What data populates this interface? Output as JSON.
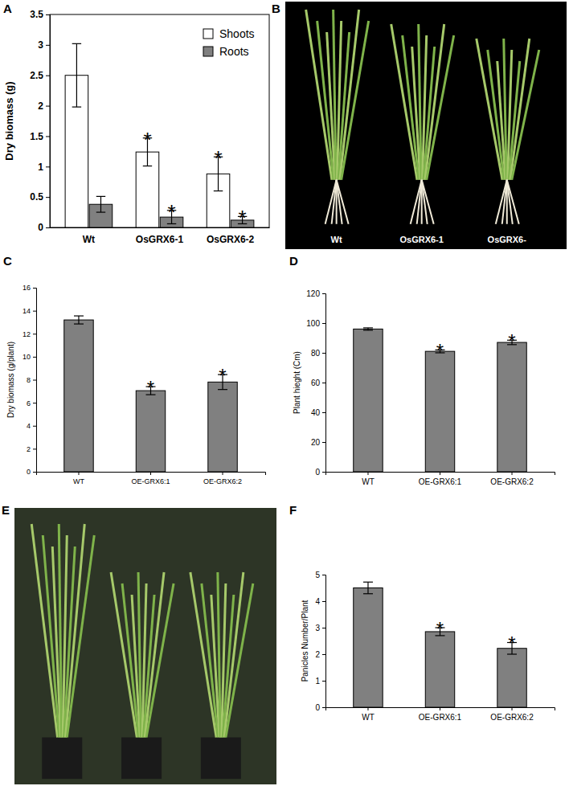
{
  "chart_data": [
    {
      "type": "bar",
      "panel_label": "A",
      "y_label": "Dry biomass (g)",
      "categories": [
        "Wt",
        "OsGRX6-1",
        "OsGRX6-2"
      ],
      "series": [
        {
          "name": "Shoots",
          "color": "#ffffff",
          "values": [
            2.5,
            1.24,
            0.88
          ],
          "errors": [
            0.52,
            0.23,
            0.28
          ],
          "annotations": [
            null,
            "*",
            "*"
          ]
        },
        {
          "name": "Roots",
          "color": "#808080",
          "values": [
            0.38,
            0.17,
            0.12
          ],
          "errors": [
            0.13,
            0.11,
            0.06
          ],
          "annotations": [
            null,
            "*",
            "*"
          ]
        }
      ],
      "ylim": [
        0,
        3.5
      ],
      "yticks": [
        0,
        0.5,
        1,
        1.5,
        2,
        2.5,
        3,
        3.5
      ],
      "grid": false,
      "legend": "upper right"
    },
    {
      "type": "image",
      "panel_label": "B",
      "labels": [
        "Wt",
        "OsGRX6-1",
        "OsGRX6-"
      ]
    },
    {
      "type": "bar",
      "panel_label": "C",
      "y_label": "Dry biomass (g/plant)",
      "categories": [
        "WT",
        "OE-GRX6:1",
        "OE-GRX6:2"
      ],
      "values": [
        13.2,
        7.05,
        7.8
      ],
      "errors": [
        0.35,
        0.35,
        0.65
      ],
      "annotations": [
        null,
        "*",
        "*"
      ],
      "color": "#808080",
      "ylim": [
        0,
        16
      ],
      "yticks": [
        0,
        2,
        4,
        6,
        8,
        10,
        12,
        14,
        16
      ],
      "grid": false
    },
    {
      "type": "bar",
      "panel_label": "D",
      "y_label": "Plant hieght (Cm)",
      "categories": [
        "WT",
        "OE-GRX6:1",
        "OE-GRX6:2"
      ],
      "values": [
        96,
        81,
        87
      ],
      "errors": [
        0.8,
        1,
        1.5
      ],
      "annotations": [
        null,
        "*",
        "*"
      ],
      "color": "#808080",
      "ylim": [
        0,
        120
      ],
      "yticks": [
        0,
        20,
        40,
        60,
        80,
        100,
        120
      ],
      "grid": false
    },
    {
      "type": "image",
      "panel_label": "E"
    },
    {
      "type": "bar",
      "panel_label": "F",
      "y_label": "Panicles Number/Plant",
      "categories": [
        "WT",
        "OE-GRX6:1",
        "OE-GRX6:2"
      ],
      "values": [
        4.5,
        2.85,
        2.22
      ],
      "errors": [
        0.22,
        0.15,
        0.22
      ],
      "annotations": [
        null,
        "*",
        "*"
      ],
      "color": "#808080",
      "ylim": [
        0,
        5
      ],
      "yticks": [
        0,
        1,
        2,
        3,
        4,
        5
      ],
      "grid": false
    }
  ]
}
